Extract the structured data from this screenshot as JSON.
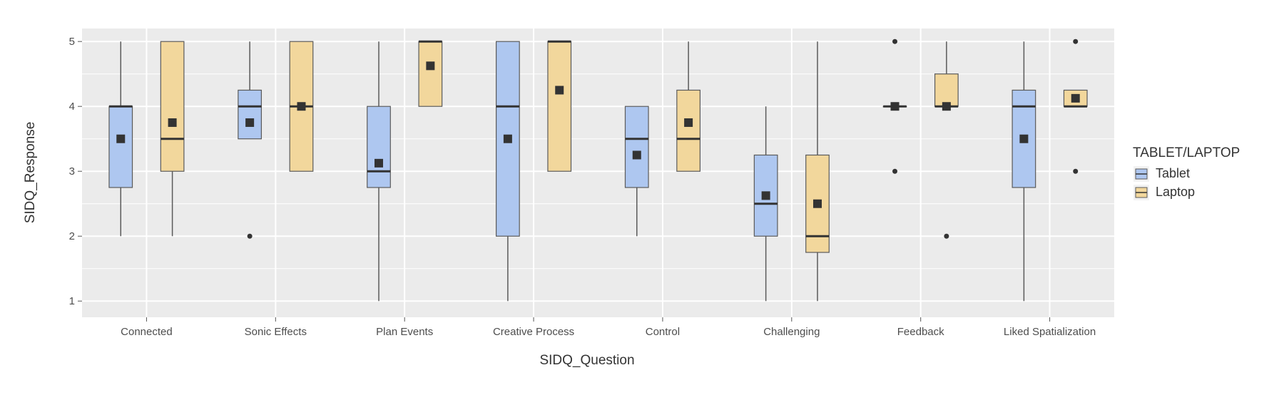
{
  "chart_data": {
    "type": "boxplot",
    "xlabel": "SIDQ_Question",
    "ylabel": "SIDQ_Response",
    "ylim": [
      0.75,
      5.2
    ],
    "yticks": [
      1,
      2,
      3,
      4,
      5
    ],
    "grid": true,
    "legend_position": "right",
    "legend_title": "TABLET/LAPTOP",
    "categories": [
      "Connected",
      "Sonic Effects",
      "Plan Events",
      "Creative Process",
      "Control",
      "Challenging",
      "Feedback",
      "Liked Spatialization"
    ],
    "series": [
      {
        "name": "Tablet",
        "color": "#aec7f0",
        "boxes": [
          {
            "low": 2,
            "q1": 2.75,
            "median": 4,
            "q3": 4,
            "high": 5,
            "mean": 3.5,
            "outliers": []
          },
          {
            "low": 3.5,
            "q1": 3.5,
            "median": 4,
            "q3": 4.25,
            "high": 5,
            "mean": 3.75,
            "outliers": [
              2
            ]
          },
          {
            "low": 1,
            "q1": 2.75,
            "median": 3,
            "q3": 4,
            "high": 5,
            "mean": 3.125,
            "outliers": []
          },
          {
            "low": 1,
            "q1": 2,
            "median": 4,
            "q3": 5,
            "high": 5,
            "mean": 3.5,
            "outliers": []
          },
          {
            "low": 2,
            "q1": 2.75,
            "median": 3.5,
            "q3": 4,
            "high": 4,
            "mean": 3.25,
            "outliers": []
          },
          {
            "low": 1,
            "q1": 2,
            "median": 2.5,
            "q3": 3.25,
            "high": 4,
            "mean": 2.625,
            "outliers": []
          },
          {
            "low": 4,
            "q1": 4,
            "median": 4,
            "q3": 4,
            "high": 4,
            "mean": 4,
            "outliers": [
              5,
              3
            ]
          },
          {
            "low": 1,
            "q1": 2.75,
            "median": 4,
            "q3": 4.25,
            "high": 5,
            "mean": 3.5,
            "outliers": []
          }
        ]
      },
      {
        "name": "Laptop",
        "color": "#f2d79c",
        "boxes": [
          {
            "low": 2,
            "q1": 3,
            "median": 3.5,
            "q3": 5,
            "high": 5,
            "mean": 3.75,
            "outliers": []
          },
          {
            "low": 3,
            "q1": 3,
            "median": 4,
            "q3": 5,
            "high": 5,
            "mean": 4,
            "outliers": []
          },
          {
            "low": 4,
            "q1": 4,
            "median": 5,
            "q3": 5,
            "high": 5,
            "mean": 4.625,
            "outliers": []
          },
          {
            "low": 3,
            "q1": 3,
            "median": 5,
            "q3": 5,
            "high": 5,
            "mean": 4.25,
            "outliers": []
          },
          {
            "low": 3,
            "q1": 3,
            "median": 3.5,
            "q3": 4.25,
            "high": 5,
            "mean": 3.75,
            "outliers": []
          },
          {
            "low": 1,
            "q1": 1.75,
            "median": 2,
            "q3": 3.25,
            "high": 5,
            "mean": 2.5,
            "outliers": []
          },
          {
            "low": 4,
            "q1": 4,
            "median": 4,
            "q3": 4.5,
            "high": 5,
            "mean": 4,
            "outliers": [
              2
            ]
          },
          {
            "low": 4,
            "q1": 4,
            "median": 4,
            "q3": 4.25,
            "high": 4.25,
            "mean": 4.125,
            "outliers": [
              5,
              3
            ]
          }
        ]
      }
    ]
  },
  "colors": {
    "panel_background": "#ebebeb",
    "grid": "#ffffff",
    "box_outline": "#5a5a5a",
    "mean_marker": "#333333"
  }
}
